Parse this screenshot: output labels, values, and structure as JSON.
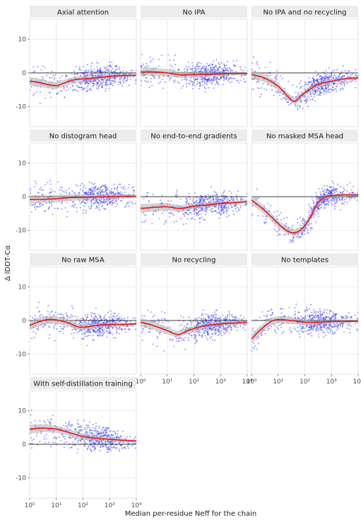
{
  "figure": {
    "xlabel": "Median per-residue Neff for the chain",
    "ylabel": "Δ lDDT-Cα"
  },
  "colors": {
    "points": "#3b3bff",
    "trend": "#e8141c",
    "ribbon": "#b0b0b0",
    "strip_bg": "#ececec",
    "panel_bg": "#ffffff",
    "grid": "#dcdcdc",
    "zero_line": "#000000"
  },
  "chart_data": {
    "type": "scatter",
    "x_scale": "log10",
    "xlim": [
      1,
      10000
    ],
    "ylim": [
      -16,
      16
    ],
    "y_ticks": [
      -10,
      0,
      10
    ],
    "x_ticks": [
      1,
      10,
      100,
      1000,
      10000
    ],
    "x_tick_labels": [
      "10⁰",
      "10¹",
      "10²",
      "10³",
      "10⁴"
    ],
    "grid": true,
    "panels": [
      {
        "title": "Axial attention",
        "trend": [
          [
            1,
            -2.5
          ],
          [
            2,
            -2.8
          ],
          [
            5,
            -3.5
          ],
          [
            10,
            -3.8
          ],
          [
            20,
            -3.0
          ],
          [
            50,
            -2.0
          ],
          [
            100,
            -1.8
          ],
          [
            300,
            -1.5
          ],
          [
            1000,
            -1.0
          ],
          [
            3000,
            -0.8
          ],
          [
            10000,
            -0.7
          ]
        ]
      },
      {
        "title": "No IPA",
        "trend": [
          [
            1,
            0.3
          ],
          [
            3,
            0.3
          ],
          [
            10,
            0.0
          ],
          [
            30,
            -0.6
          ],
          [
            100,
            -0.5
          ],
          [
            300,
            -0.4
          ],
          [
            1000,
            -0.3
          ],
          [
            3000,
            -0.2
          ],
          [
            10000,
            -0.2
          ]
        ]
      },
      {
        "title": "No IPA and no recycling",
        "trend": [
          [
            1,
            -0.5
          ],
          [
            3,
            -1.5
          ],
          [
            10,
            -4.0
          ],
          [
            20,
            -6.5
          ],
          [
            40,
            -8.5
          ],
          [
            80,
            -6.5
          ],
          [
            150,
            -5.0
          ],
          [
            300,
            -3.5
          ],
          [
            1000,
            -2.5
          ],
          [
            3000,
            -1.8
          ],
          [
            10000,
            -1.5
          ]
        ]
      },
      {
        "title": "No distogram head",
        "trend": [
          [
            1,
            -0.8
          ],
          [
            3,
            -0.8
          ],
          [
            10,
            -0.6
          ],
          [
            30,
            -0.3
          ],
          [
            100,
            -0.2
          ],
          [
            300,
            -0.1
          ],
          [
            1000,
            0.0
          ],
          [
            3000,
            0.1
          ],
          [
            10000,
            0.1
          ]
        ]
      },
      {
        "title": "No end-to-end gradients",
        "trend": [
          [
            1,
            -3.5
          ],
          [
            3,
            -3.2
          ],
          [
            10,
            -3.0
          ],
          [
            30,
            -3.5
          ],
          [
            100,
            -2.8
          ],
          [
            300,
            -2.5
          ],
          [
            1000,
            -2.0
          ],
          [
            3000,
            -1.8
          ],
          [
            10000,
            -1.5
          ]
        ]
      },
      {
        "title": "No masked MSA head",
        "trend": [
          [
            1,
            -1.0
          ],
          [
            3,
            -4.0
          ],
          [
            10,
            -8.0
          ],
          [
            20,
            -10.0
          ],
          [
            40,
            -10.8
          ],
          [
            80,
            -9.5
          ],
          [
            150,
            -6.5
          ],
          [
            300,
            -2.0
          ],
          [
            600,
            0.0
          ],
          [
            1000,
            0.3
          ],
          [
            3000,
            0.5
          ],
          [
            10000,
            0.5
          ]
        ]
      },
      {
        "title": "No raw MSA",
        "trend": [
          [
            1,
            -1.5
          ],
          [
            2,
            -0.5
          ],
          [
            5,
            0.3
          ],
          [
            10,
            0.2
          ],
          [
            30,
            -0.8
          ],
          [
            60,
            -1.8
          ],
          [
            100,
            -2.0
          ],
          [
            300,
            -1.5
          ],
          [
            1000,
            -1.2
          ],
          [
            3000,
            -1.2
          ],
          [
            10000,
            -1.0
          ]
        ]
      },
      {
        "title": "No recycling",
        "trend": [
          [
            1,
            -0.5
          ],
          [
            3,
            -1.5
          ],
          [
            10,
            -3.0
          ],
          [
            25,
            -4.2
          ],
          [
            60,
            -3.0
          ],
          [
            150,
            -2.0
          ],
          [
            300,
            -1.5
          ],
          [
            1000,
            -1.0
          ],
          [
            3000,
            -0.8
          ],
          [
            10000,
            -0.5
          ]
        ]
      },
      {
        "title": "No templates",
        "trend": [
          [
            1,
            -5.5
          ],
          [
            2,
            -3.0
          ],
          [
            5,
            -0.5
          ],
          [
            10,
            0.3
          ],
          [
            30,
            0.0
          ],
          [
            100,
            -0.5
          ],
          [
            300,
            -0.5
          ],
          [
            1000,
            -0.3
          ],
          [
            3000,
            -0.3
          ],
          [
            10000,
            -0.2
          ]
        ]
      },
      {
        "title": "With self-distillation training",
        "trend": [
          [
            1,
            4.5
          ],
          [
            3,
            4.8
          ],
          [
            10,
            4.5
          ],
          [
            30,
            3.5
          ],
          [
            100,
            2.3
          ],
          [
            300,
            1.8
          ],
          [
            1000,
            1.5
          ],
          [
            3000,
            1.2
          ],
          [
            10000,
            1.0
          ]
        ]
      }
    ]
  }
}
